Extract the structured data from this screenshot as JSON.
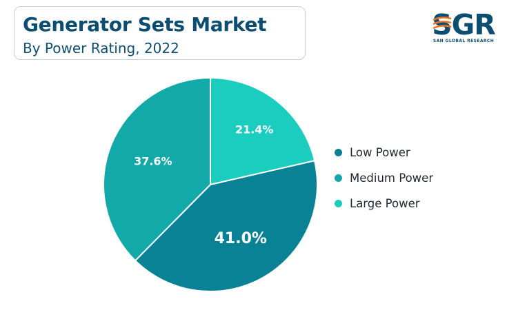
{
  "header": {
    "title": "Generator Sets Market",
    "subtitle": "By Power Rating, 2022"
  },
  "brand": {
    "mark": "SGR",
    "name": "SAN GLOBAL RESEARCH",
    "primary_color": "#0b4e72",
    "accent_color": "#f0731f"
  },
  "chart_data": {
    "type": "pie",
    "title": "Generator Sets Market",
    "subtitle": "By Power Rating, 2022",
    "legend_position": "right",
    "slices": [
      {
        "name": "Low Power",
        "value": 41.0,
        "label": "41.0%",
        "color": "#0a8296"
      },
      {
        "name": "Medium Power",
        "value": 37.6,
        "label": "37.6%",
        "color": "#13a9a9"
      },
      {
        "name": "Large Power",
        "value": 21.4,
        "label": "21.4%",
        "color": "#1bcdbe"
      }
    ]
  }
}
